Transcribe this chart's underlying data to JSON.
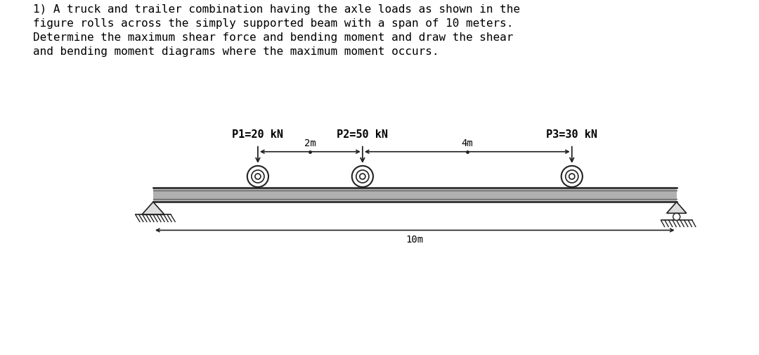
{
  "title_text": "1) A truck and trailer combination having the axle loads as shown in the\nfigure rolls across the simply supported beam with a span of 10 meters.\nDetermine the maximum shear force and bending moment and draw the shear\nand bending moment diagrams where the maximum moment occurs.",
  "P1_label": "P1=20 kN",
  "P2_label": "P2=50 kN",
  "P3_label": "P3=30 kN",
  "dim1_label": "2m",
  "dim2_label": "4m",
  "span_label": "10m",
  "bg_color": "#ffffff",
  "text_color": "#000000",
  "title_fontsize": 11.5,
  "label_fontsize": 11,
  "dim_fontsize": 10,
  "monospace_font": "DejaVu Sans Mono"
}
